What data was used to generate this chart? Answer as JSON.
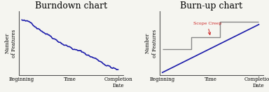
{
  "bg_color": "#f5f5f0",
  "left_title": "Burndown chart",
  "right_title": "Burn-up chart",
  "axis_color": "#555555",
  "line_color": "#1a1aaa",
  "scope_creep_color": "#cc2222",
  "scope_line_color": "#888888",
  "ylabel": "Number\nof Features",
  "xlabel_begin": "Beginning",
  "xlabel_mid": "Time",
  "xlabel_end": "Completion\nDate",
  "title_fontsize": 9,
  "label_fontsize": 5,
  "tick_fontsize": 5,
  "scope_creep_label": "Scope Creep"
}
